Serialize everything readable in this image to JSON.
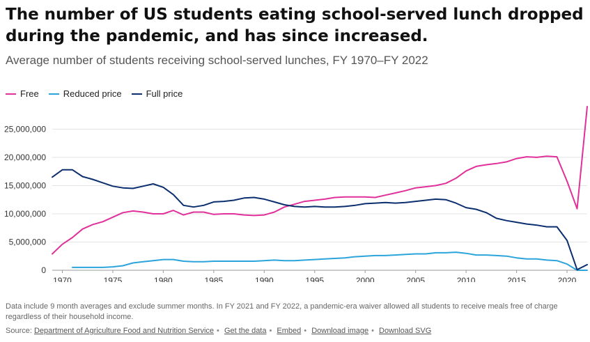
{
  "header": {
    "title": "The number of US students eating school-served lunch dropped during the pandemic, and has since increased.",
    "subtitle": "Average number of students receiving school-served lunches, FY 1970–FY 2022"
  },
  "footer": {
    "note": "Data include 9 month averages and exclude summer months. In FY 2021 and FY 2022, a pandemic-era waiver allowed all students to receive meals free of charge regardless of their household income.",
    "source_label": "Source:",
    "links": [
      "Department of Agriculture Food and Nutrition Service",
      "Get the data",
      "Embed",
      "Download image",
      "Download SVG"
    ]
  },
  "chart_data": {
    "type": "line",
    "title": "Average number of students receiving school-served lunches, FY 1970–FY 2022",
    "xlabel": "",
    "ylabel": "",
    "xlim": [
      1969,
      2022
    ],
    "ylim": [
      0,
      29000000
    ],
    "x_ticks": [
      "1970",
      "1975",
      "1980",
      "1985",
      "1990",
      "1995",
      "2000",
      "2005",
      "2010",
      "2015",
      "2020"
    ],
    "y_ticks": [
      "0",
      "5,000,000",
      "10,000,000",
      "15,000,000",
      "20,000,000",
      "25,000,000"
    ],
    "grid": "horizontal",
    "legend_position": "top-left",
    "series": [
      {
        "name": "Free",
        "color": "#e0309a",
        "points": [
          [
            1969,
            2900000
          ],
          [
            1970,
            4600000
          ],
          [
            1971,
            5800000
          ],
          [
            1972,
            7300000
          ],
          [
            1973,
            8100000
          ],
          [
            1974,
            8600000
          ],
          [
            1975,
            9400000
          ],
          [
            1976,
            10200000
          ],
          [
            1977,
            10500000
          ],
          [
            1978,
            10300000
          ],
          [
            1979,
            10000000
          ],
          [
            1980,
            10000000
          ],
          [
            1981,
            10600000
          ],
          [
            1982,
            9800000
          ],
          [
            1983,
            10300000
          ],
          [
            1984,
            10300000
          ],
          [
            1985,
            9900000
          ],
          [
            1986,
            10000000
          ],
          [
            1987,
            10000000
          ],
          [
            1988,
            9800000
          ],
          [
            1989,
            9700000
          ],
          [
            1990,
            9800000
          ],
          [
            1991,
            10300000
          ],
          [
            1992,
            11200000
          ],
          [
            1993,
            11700000
          ],
          [
            1994,
            12200000
          ],
          [
            1995,
            12400000
          ],
          [
            1996,
            12600000
          ],
          [
            1997,
            12900000
          ],
          [
            1998,
            13000000
          ],
          [
            1999,
            13000000
          ],
          [
            2000,
            13000000
          ],
          [
            2001,
            12900000
          ],
          [
            2002,
            13300000
          ],
          [
            2003,
            13700000
          ],
          [
            2004,
            14100000
          ],
          [
            2005,
            14600000
          ],
          [
            2006,
            14800000
          ],
          [
            2007,
            15000000
          ],
          [
            2008,
            15400000
          ],
          [
            2009,
            16300000
          ],
          [
            2010,
            17600000
          ],
          [
            2011,
            18400000
          ],
          [
            2012,
            18700000
          ],
          [
            2013,
            18900000
          ],
          [
            2014,
            19200000
          ],
          [
            2015,
            19800000
          ],
          [
            2016,
            20100000
          ],
          [
            2017,
            20000000
          ],
          [
            2018,
            20200000
          ],
          [
            2019,
            20100000
          ],
          [
            2020,
            15800000
          ],
          [
            2021,
            10900000
          ],
          [
            2022,
            29000000
          ]
        ]
      },
      {
        "name": "Reduced price",
        "color": "#2ba3db",
        "points": [
          [
            1971,
            500000
          ],
          [
            1972,
            500000
          ],
          [
            1973,
            500000
          ],
          [
            1974,
            500000
          ],
          [
            1975,
            600000
          ],
          [
            1976,
            800000
          ],
          [
            1977,
            1300000
          ],
          [
            1978,
            1500000
          ],
          [
            1979,
            1700000
          ],
          [
            1980,
            1900000
          ],
          [
            1981,
            1900000
          ],
          [
            1982,
            1600000
          ],
          [
            1983,
            1500000
          ],
          [
            1984,
            1500000
          ],
          [
            1985,
            1600000
          ],
          [
            1986,
            1600000
          ],
          [
            1987,
            1600000
          ],
          [
            1988,
            1600000
          ],
          [
            1989,
            1600000
          ],
          [
            1990,
            1700000
          ],
          [
            1991,
            1800000
          ],
          [
            1992,
            1700000
          ],
          [
            1993,
            1700000
          ],
          [
            1994,
            1800000
          ],
          [
            1995,
            1900000
          ],
          [
            1996,
            2000000
          ],
          [
            1997,
            2100000
          ],
          [
            1998,
            2200000
          ],
          [
            1999,
            2400000
          ],
          [
            2000,
            2500000
          ],
          [
            2001,
            2600000
          ],
          [
            2002,
            2600000
          ],
          [
            2003,
            2700000
          ],
          [
            2004,
            2800000
          ],
          [
            2005,
            2900000
          ],
          [
            2006,
            2900000
          ],
          [
            2007,
            3100000
          ],
          [
            2008,
            3100000
          ],
          [
            2009,
            3200000
          ],
          [
            2010,
            3000000
          ],
          [
            2011,
            2700000
          ],
          [
            2012,
            2700000
          ],
          [
            2013,
            2600000
          ],
          [
            2014,
            2500000
          ],
          [
            2015,
            2200000
          ],
          [
            2016,
            2000000
          ],
          [
            2017,
            2000000
          ],
          [
            2018,
            1800000
          ],
          [
            2019,
            1700000
          ],
          [
            2020,
            1100000
          ],
          [
            2021,
            0
          ],
          [
            2022,
            0
          ]
        ]
      },
      {
        "name": "Full price",
        "color": "#0b2e6e",
        "points": [
          [
            1969,
            16500000
          ],
          [
            1970,
            17800000
          ],
          [
            1971,
            17800000
          ],
          [
            1972,
            16600000
          ],
          [
            1973,
            16100000
          ],
          [
            1974,
            15500000
          ],
          [
            1975,
            14900000
          ],
          [
            1976,
            14600000
          ],
          [
            1977,
            14500000
          ],
          [
            1978,
            14900000
          ],
          [
            1979,
            15300000
          ],
          [
            1980,
            14700000
          ],
          [
            1981,
            13400000
          ],
          [
            1982,
            11500000
          ],
          [
            1983,
            11200000
          ],
          [
            1984,
            11500000
          ],
          [
            1985,
            12100000
          ],
          [
            1986,
            12200000
          ],
          [
            1987,
            12400000
          ],
          [
            1988,
            12800000
          ],
          [
            1989,
            12900000
          ],
          [
            1990,
            12600000
          ],
          [
            1991,
            12100000
          ],
          [
            1992,
            11600000
          ],
          [
            1993,
            11300000
          ],
          [
            1994,
            11200000
          ],
          [
            1995,
            11300000
          ],
          [
            1996,
            11200000
          ],
          [
            1997,
            11200000
          ],
          [
            1998,
            11300000
          ],
          [
            1999,
            11500000
          ],
          [
            2000,
            11800000
          ],
          [
            2001,
            11900000
          ],
          [
            2002,
            12000000
          ],
          [
            2003,
            11900000
          ],
          [
            2004,
            12000000
          ],
          [
            2005,
            12200000
          ],
          [
            2006,
            12400000
          ],
          [
            2007,
            12600000
          ],
          [
            2008,
            12500000
          ],
          [
            2009,
            11900000
          ],
          [
            2010,
            11100000
          ],
          [
            2011,
            10800000
          ],
          [
            2012,
            10200000
          ],
          [
            2013,
            9200000
          ],
          [
            2014,
            8800000
          ],
          [
            2015,
            8500000
          ],
          [
            2016,
            8200000
          ],
          [
            2017,
            8000000
          ],
          [
            2018,
            7700000
          ],
          [
            2019,
            7700000
          ],
          [
            2020,
            5300000
          ],
          [
            2021,
            100000
          ],
          [
            2022,
            1000000
          ]
        ]
      }
    ]
  }
}
